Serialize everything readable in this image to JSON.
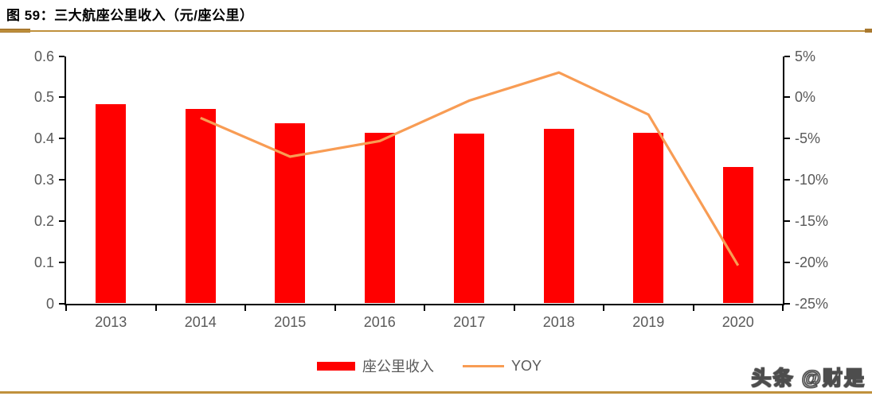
{
  "title": "图 59：三大航座公里收入（元/座公里）",
  "watermark": "头条 @财是",
  "colors": {
    "bar": "#ff0000",
    "line": "#f89c54",
    "rule": "#c0913c",
    "axis": "#000000",
    "tick_label": "#595959"
  },
  "chart_data": {
    "type": "bar",
    "subtype": "bar+line dual axis",
    "title": "三大航座公里收入（元/座公里）",
    "categories": [
      "2013",
      "2014",
      "2015",
      "2016",
      "2017",
      "2018",
      "2019",
      "2020"
    ],
    "series": [
      {
        "name": "座公里收入",
        "type": "bar",
        "axis": "left",
        "color": "#ff0000",
        "values": [
          0.483,
          0.471,
          0.437,
          0.414,
          0.412,
          0.423,
          0.414,
          0.33
        ]
      },
      {
        "name": "YOY",
        "type": "line",
        "axis": "right",
        "color": "#f89c54",
        "values": [
          null,
          -2.5,
          -7.2,
          -5.3,
          -0.4,
          3.0,
          -2.1,
          -20.4
        ]
      }
    ],
    "left_axis": {
      "min": 0,
      "max": 0.6,
      "tick_values": [
        0.6,
        0.5,
        0.4,
        0.3,
        0.2,
        0.1,
        0
      ],
      "tick_labels": [
        "0.6",
        "0.5",
        "0.4",
        "0.3",
        "0.2",
        "0.1",
        "0"
      ]
    },
    "right_axis": {
      "min": -25,
      "max": 5,
      "unit": "%",
      "tick_values": [
        5,
        0,
        -5,
        -10,
        -15,
        -20,
        -25
      ],
      "tick_labels": [
        "5%",
        "0%",
        "-5%",
        "-10%",
        "-15%",
        "-20%",
        "-25%"
      ]
    },
    "grid": false,
    "legend_position": "bottom-center",
    "legend": [
      "座公里收入",
      "YOY"
    ]
  }
}
